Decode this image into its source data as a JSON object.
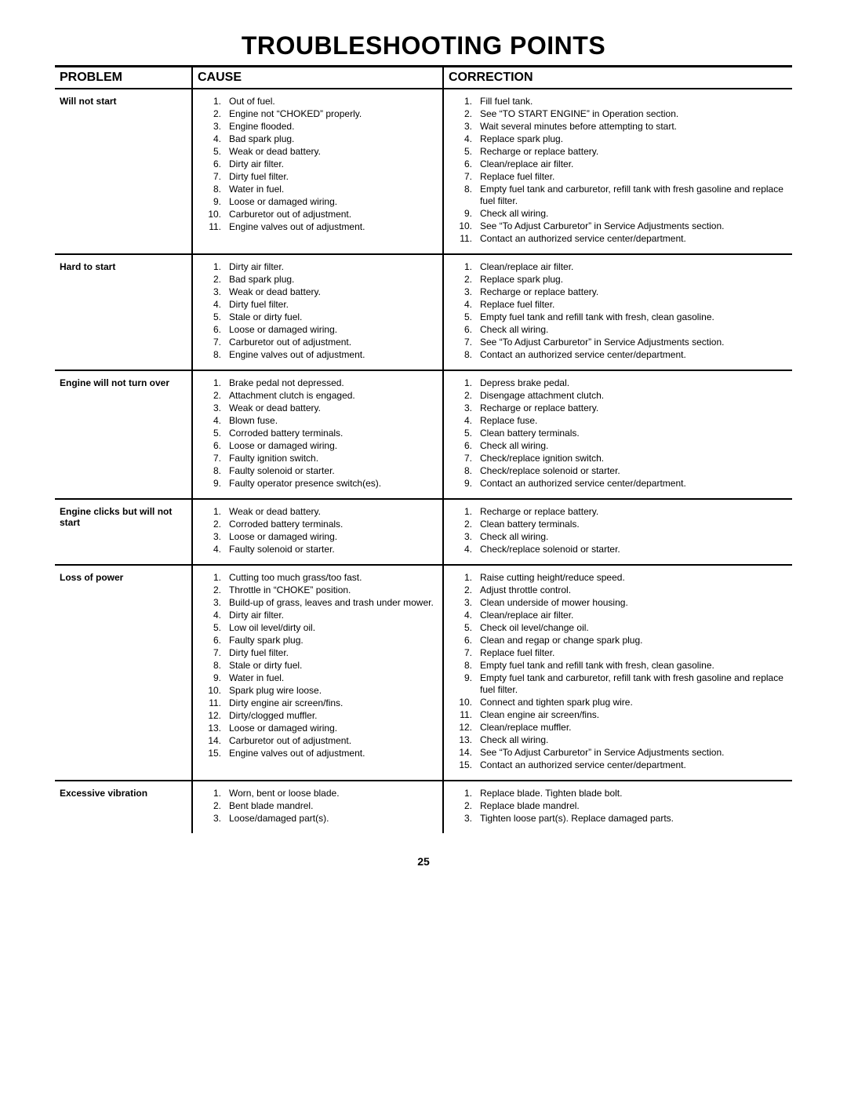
{
  "title": "TROUBLESHOOTING POINTS",
  "page_number": "25",
  "headers": {
    "problem": "PROBLEM",
    "cause": "CAUSE",
    "correction": "CORRECTION"
  },
  "rows": [
    {
      "problem": "Will not start",
      "causes": [
        "Out of fuel.",
        "Engine not “CHOKED” properly.",
        "Engine flooded.",
        "Bad spark plug.",
        "Weak or dead battery.",
        "Dirty air filter.",
        "Dirty fuel filter.",
        "Water in fuel.",
        "Loose or damaged wiring.",
        "Carburetor out of adjustment.",
        "Engine valves out of adjustment."
      ],
      "corrections": [
        "Fill fuel tank.",
        "See “TO START ENGINE” in Operation section.",
        "Wait several minutes before attempting to start.",
        "Replace spark plug.",
        "Recharge or replace battery.",
        "Clean/replace air filter.",
        "Replace fuel filter.",
        "Empty fuel tank and carburetor, refill tank with fresh gasoline and replace fuel filter.",
        "Check all wiring.",
        "See “To Adjust Carburetor” in Service Adjustments section.",
        "Contact an authorized service center/department."
      ]
    },
    {
      "problem": "Hard to start",
      "causes": [
        "Dirty air filter.",
        "Bad spark plug.",
        "Weak or dead battery.",
        "Dirty fuel filter.",
        "Stale or dirty fuel.",
        "Loose or damaged wiring.",
        "Carburetor out of adjustment.",
        "Engine valves out of adjustment."
      ],
      "corrections": [
        "Clean/replace air filter.",
        "Replace spark plug.",
        "Recharge or replace battery.",
        "Replace fuel filter.",
        "Empty fuel tank and refill tank with fresh, clean gasoline.",
        "Check all wiring.",
        "See “To Adjust Carburetor” in Service Adjustments section.",
        "Contact an authorized service center/department."
      ]
    },
    {
      "problem": "Engine will not turn over",
      "causes": [
        "Brake pedal not depressed.",
        "Attachment clutch is engaged.",
        "Weak or dead battery.",
        "Blown fuse.",
        "Corroded battery terminals.",
        "Loose or damaged wiring.",
        "Faulty ignition switch.",
        "Faulty solenoid or starter.",
        "Faulty operator presence switch(es)."
      ],
      "corrections": [
        "Depress brake pedal.",
        "Disengage attachment clutch.",
        "Recharge or replace battery.",
        "Replace fuse.",
        "Clean battery terminals.",
        "Check all wiring.",
        "Check/replace ignition switch.",
        "Check/replace solenoid or starter.",
        "Contact an authorized service center/department."
      ]
    },
    {
      "problem": "Engine clicks but will not start",
      "causes": [
        "Weak or dead battery.",
        "Corroded battery terminals.",
        "Loose or damaged wiring.",
        "Faulty solenoid or starter."
      ],
      "corrections": [
        "Recharge or replace battery.",
        "Clean battery terminals.",
        "Check all wiring.",
        "Check/replace solenoid or starter."
      ]
    },
    {
      "problem": "Loss of power",
      "causes": [
        "Cutting too much grass/too fast.",
        "Throttle in “CHOKE” position.",
        "Build-up of grass, leaves and trash under mower.",
        "Dirty air filter.",
        "Low oil level/dirty oil.",
        "Faulty spark plug.",
        "Dirty fuel filter.",
        "Stale or dirty fuel.",
        "Water in fuel.",
        "Spark plug wire loose.",
        "Dirty engine air screen/fins.",
        "Dirty/clogged muffler.",
        "Loose or damaged wiring.",
        "Carburetor out of adjustment.",
        "Engine valves out of adjustment."
      ],
      "corrections": [
        "Raise cutting height/reduce speed.",
        "Adjust throttle control.",
        "Clean underside of mower housing.",
        "Clean/replace air filter.",
        "Check oil level/change oil.",
        "Clean and regap or change spark plug.",
        "Replace fuel filter.",
        "Empty fuel tank and refill tank with fresh, clean gasoline.",
        "Empty fuel tank and carburetor, refill tank with fresh gasoline and replace fuel filter.",
        "Connect and tighten spark plug wire.",
        "Clean engine air screen/fins.",
        "Clean/replace muffler.",
        "Check all wiring.",
        "See “To Adjust Carburetor” in Service Adjustments section.",
        "Contact an authorized service center/department."
      ]
    },
    {
      "problem": "Excessive vibration",
      "causes": [
        "Worn, bent or loose blade.",
        "Bent blade mandrel.",
        "Loose/damaged part(s)."
      ],
      "corrections": [
        "Replace blade.  Tighten blade bolt.",
        "Replace blade mandrel.",
        "Tighten loose part(s).  Replace damaged parts."
      ]
    }
  ]
}
